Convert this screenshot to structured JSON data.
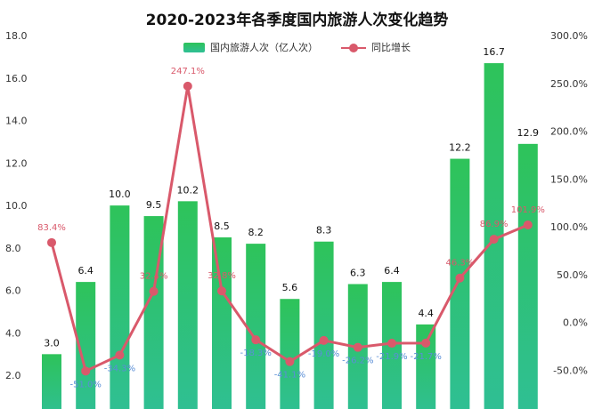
{
  "chart_data": {
    "type": "bar+line",
    "title": "2020-2023年各季度国内旅游人次变化趋势",
    "legend_position": "top-center",
    "series": [
      {
        "name": "国内旅游人次（亿人次）",
        "kind": "bar",
        "axis": "left",
        "values": [
          3.0,
          6.4,
          10.0,
          9.5,
          10.2,
          8.5,
          8.2,
          5.6,
          8.3,
          6.3,
          6.4,
          4.4,
          12.2,
          16.7,
          12.9
        ],
        "labels": [
          "3.0",
          "6.4",
          "10.0",
          "9.5",
          "10.2",
          "8.5",
          "8.2",
          "5.6",
          "8.3",
          "6.3",
          "6.4",
          "4.4",
          "12.2",
          "16.7",
          "12.9"
        ],
        "color_top": "#2ec35a",
        "color_bottom": "#2fbf95"
      },
      {
        "name": "同比增长",
        "kind": "line",
        "axis": "right",
        "values": [
          83.4,
          -51.0,
          -34.3,
          32.4,
          247.1,
          32.8,
          -18.3,
          -41.1,
          -19.0,
          -26.2,
          -21.9,
          -21.7,
          46.3,
          86.9,
          101.9
        ],
        "labels": [
          "83.4%",
          "-51.0%",
          "-34.3%",
          "32.4%",
          "247.1%",
          "32.8%",
          "-18.3%",
          "-41.1%",
          "-19.0%",
          "-26.2%",
          "-21.9%",
          "-21.7%",
          "46.3%",
          "86.9%",
          "101.9%"
        ],
        "color": "#d9596b",
        "positive_label_color": "#d9596b",
        "negative_label_color": "#5a8ed6"
      }
    ],
    "y_left": {
      "min": 0,
      "max": 18,
      "ticks": [
        2,
        4,
        6,
        8,
        10,
        12,
        14,
        16,
        18
      ],
      "tick_labels": [
        "2.0",
        "4.0",
        "6.0",
        "8.0",
        "10.0",
        "12.0",
        "14.0",
        "16.0",
        "18.0"
      ]
    },
    "y_right": {
      "min": -100,
      "max": 300,
      "ticks": [
        -50,
        0,
        50,
        100,
        150,
        200,
        250,
        300
      ],
      "tick_labels": [
        "-50.0%",
        "0.0%",
        "50.0%",
        "100.0%",
        "150.0%",
        "200.0%",
        "250.0%",
        "300.0%"
      ]
    },
    "grid": false
  }
}
